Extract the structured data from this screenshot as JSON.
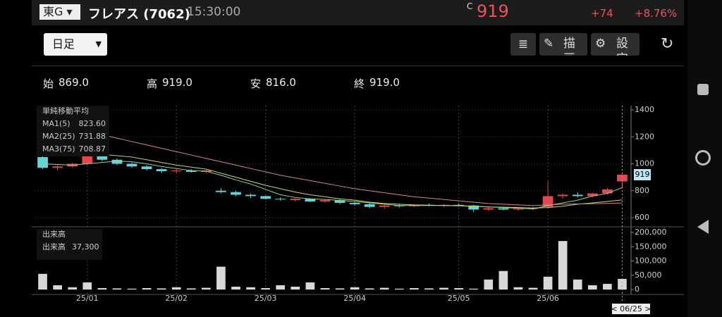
{
  "header": {
    "market": "東G",
    "name": "フレアス (7062)",
    "time": "15:30:00",
    "price_mark": "C",
    "price": "919",
    "change": "+74",
    "change_pct": "+8.76%"
  },
  "toolbar": {
    "period": "日足",
    "draw": "描画",
    "settings": "設定"
  },
  "summary": [
    {
      "label": "始",
      "value": "869.0"
    },
    {
      "label": "高",
      "value": "919.0"
    },
    {
      "label": "安",
      "value": "816.0"
    },
    {
      "label": "終",
      "value": "919.0"
    }
  ],
  "chart_data": [
    {
      "type": "candlestick",
      "legend_title": "単純移動平均",
      "price_tag": 919,
      "up_color": "#e5464f",
      "down_color": "#62d3dc",
      "grid": true,
      "ylim": [
        600,
        1400
      ],
      "yticks": [
        600,
        800,
        1000,
        1200,
        1400
      ],
      "open": [
        1050,
        970,
        980,
        1000,
        1060,
        1030,
        1000,
        980,
        960,
        945,
        950,
        940,
        800,
        790,
        770,
        760,
        740,
        730,
        740,
        720,
        730,
        710,
        700,
        680,
        690,
        685,
        695,
        690,
        695,
        690,
        660,
        670,
        660,
        665,
        680,
        760,
        770,
        760,
        780,
        869
      ],
      "high": [
        1060,
        990,
        1010,
        1080,
        1070,
        1040,
        1010,
        990,
        970,
        960,
        960,
        955,
        820,
        800,
        780,
        765,
        750,
        745,
        745,
        735,
        740,
        715,
        710,
        700,
        700,
        700,
        705,
        700,
        705,
        695,
        675,
        680,
        675,
        680,
        870,
        780,
        790,
        785,
        820,
        919
      ],
      "low": [
        960,
        950,
        970,
        990,
        1020,
        990,
        970,
        950,
        930,
        930,
        935,
        930,
        780,
        760,
        745,
        735,
        725,
        720,
        715,
        710,
        700,
        690,
        670,
        665,
        675,
        680,
        685,
        680,
        685,
        640,
        650,
        655,
        650,
        655,
        670,
        740,
        750,
        750,
        770,
        816
      ],
      "close": [
        970,
        980,
        1000,
        1060,
        1030,
        1000,
        980,
        960,
        945,
        950,
        940,
        950,
        790,
        770,
        760,
        740,
        735,
        740,
        720,
        730,
        710,
        700,
        680,
        690,
        685,
        695,
        690,
        695,
        690,
        660,
        670,
        660,
        665,
        670,
        760,
        770,
        760,
        780,
        810,
        919
      ],
      "series": [
        {
          "name": "MA1(5)",
          "legend_value": "823.60",
          "color": "#8fd68f",
          "values": [
            1000,
            995,
            990,
            1000,
            1010,
            1020,
            1015,
            1000,
            980,
            965,
            950,
            945,
            915,
            880,
            850,
            810,
            770,
            750,
            740,
            735,
            728,
            720,
            710,
            700,
            690,
            690,
            690,
            690,
            690,
            685,
            680,
            675,
            670,
            665,
            690,
            710,
            730,
            760,
            780,
            824
          ]
        },
        {
          "name": "MA2(25)",
          "legend_value": "731.88",
          "color": "#cfd46a",
          "values": [
            null,
            null,
            null,
            1080,
            1070,
            1060,
            1050,
            1030,
            1010,
            990,
            975,
            960,
            930,
            900,
            870,
            840,
            815,
            790,
            770,
            755,
            740,
            730,
            715,
            705,
            700,
            695,
            693,
            690,
            688,
            685,
            680,
            678,
            675,
            672,
            675,
            685,
            700,
            710,
            720,
            732
          ]
        },
        {
          "name": "MA3(75)",
          "legend_value": "708.87",
          "color": "#d9819a",
          "values": [
            1300,
            1280,
            1260,
            1240,
            1215,
            1190,
            1165,
            1140,
            1115,
            1090,
            1065,
            1040,
            1015,
            990,
            965,
            940,
            915,
            895,
            875,
            855,
            835,
            815,
            800,
            785,
            770,
            755,
            745,
            735,
            725,
            715,
            705,
            700,
            695,
            690,
            695,
            700,
            702,
            704,
            706,
            709
          ]
        }
      ]
    },
    {
      "type": "bar",
      "legend_title": "出来高",
      "legend_label": "出来高",
      "legend_value": "37,300",
      "color": "#d8d8d8",
      "cursor_label": "< 06/25 >",
      "ylim": [
        0,
        200000
      ],
      "yticks": [
        0,
        {
          "value": 50000,
          "label": "50,000"
        },
        {
          "value": 100000,
          "label": "100,000"
        },
        {
          "value": 150000,
          "label": "150,000"
        },
        {
          "value": 200000,
          "label": "200,000"
        }
      ],
      "categories": [
        null,
        null,
        null,
        "25/01",
        null,
        null,
        null,
        null,
        null,
        "25/02",
        null,
        null,
        null,
        null,
        null,
        "25/03",
        null,
        null,
        null,
        null,
        null,
        "25/04",
        null,
        null,
        null,
        null,
        null,
        null,
        "25/05",
        null,
        null,
        null,
        null,
        null,
        "25/06",
        null,
        null,
        null,
        null,
        null
      ],
      "values": [
        55000,
        15000,
        8000,
        25000,
        5000,
        4000,
        3000,
        5000,
        4000,
        8000,
        4000,
        6000,
        80000,
        10000,
        8000,
        5000,
        15000,
        10000,
        25000,
        5000,
        4000,
        8000,
        4000,
        6000,
        3000,
        5000,
        4000,
        6000,
        5000,
        3000,
        35000,
        65000,
        8000,
        6000,
        45000,
        170000,
        35000,
        15000,
        20000,
        37300
      ]
    }
  ]
}
